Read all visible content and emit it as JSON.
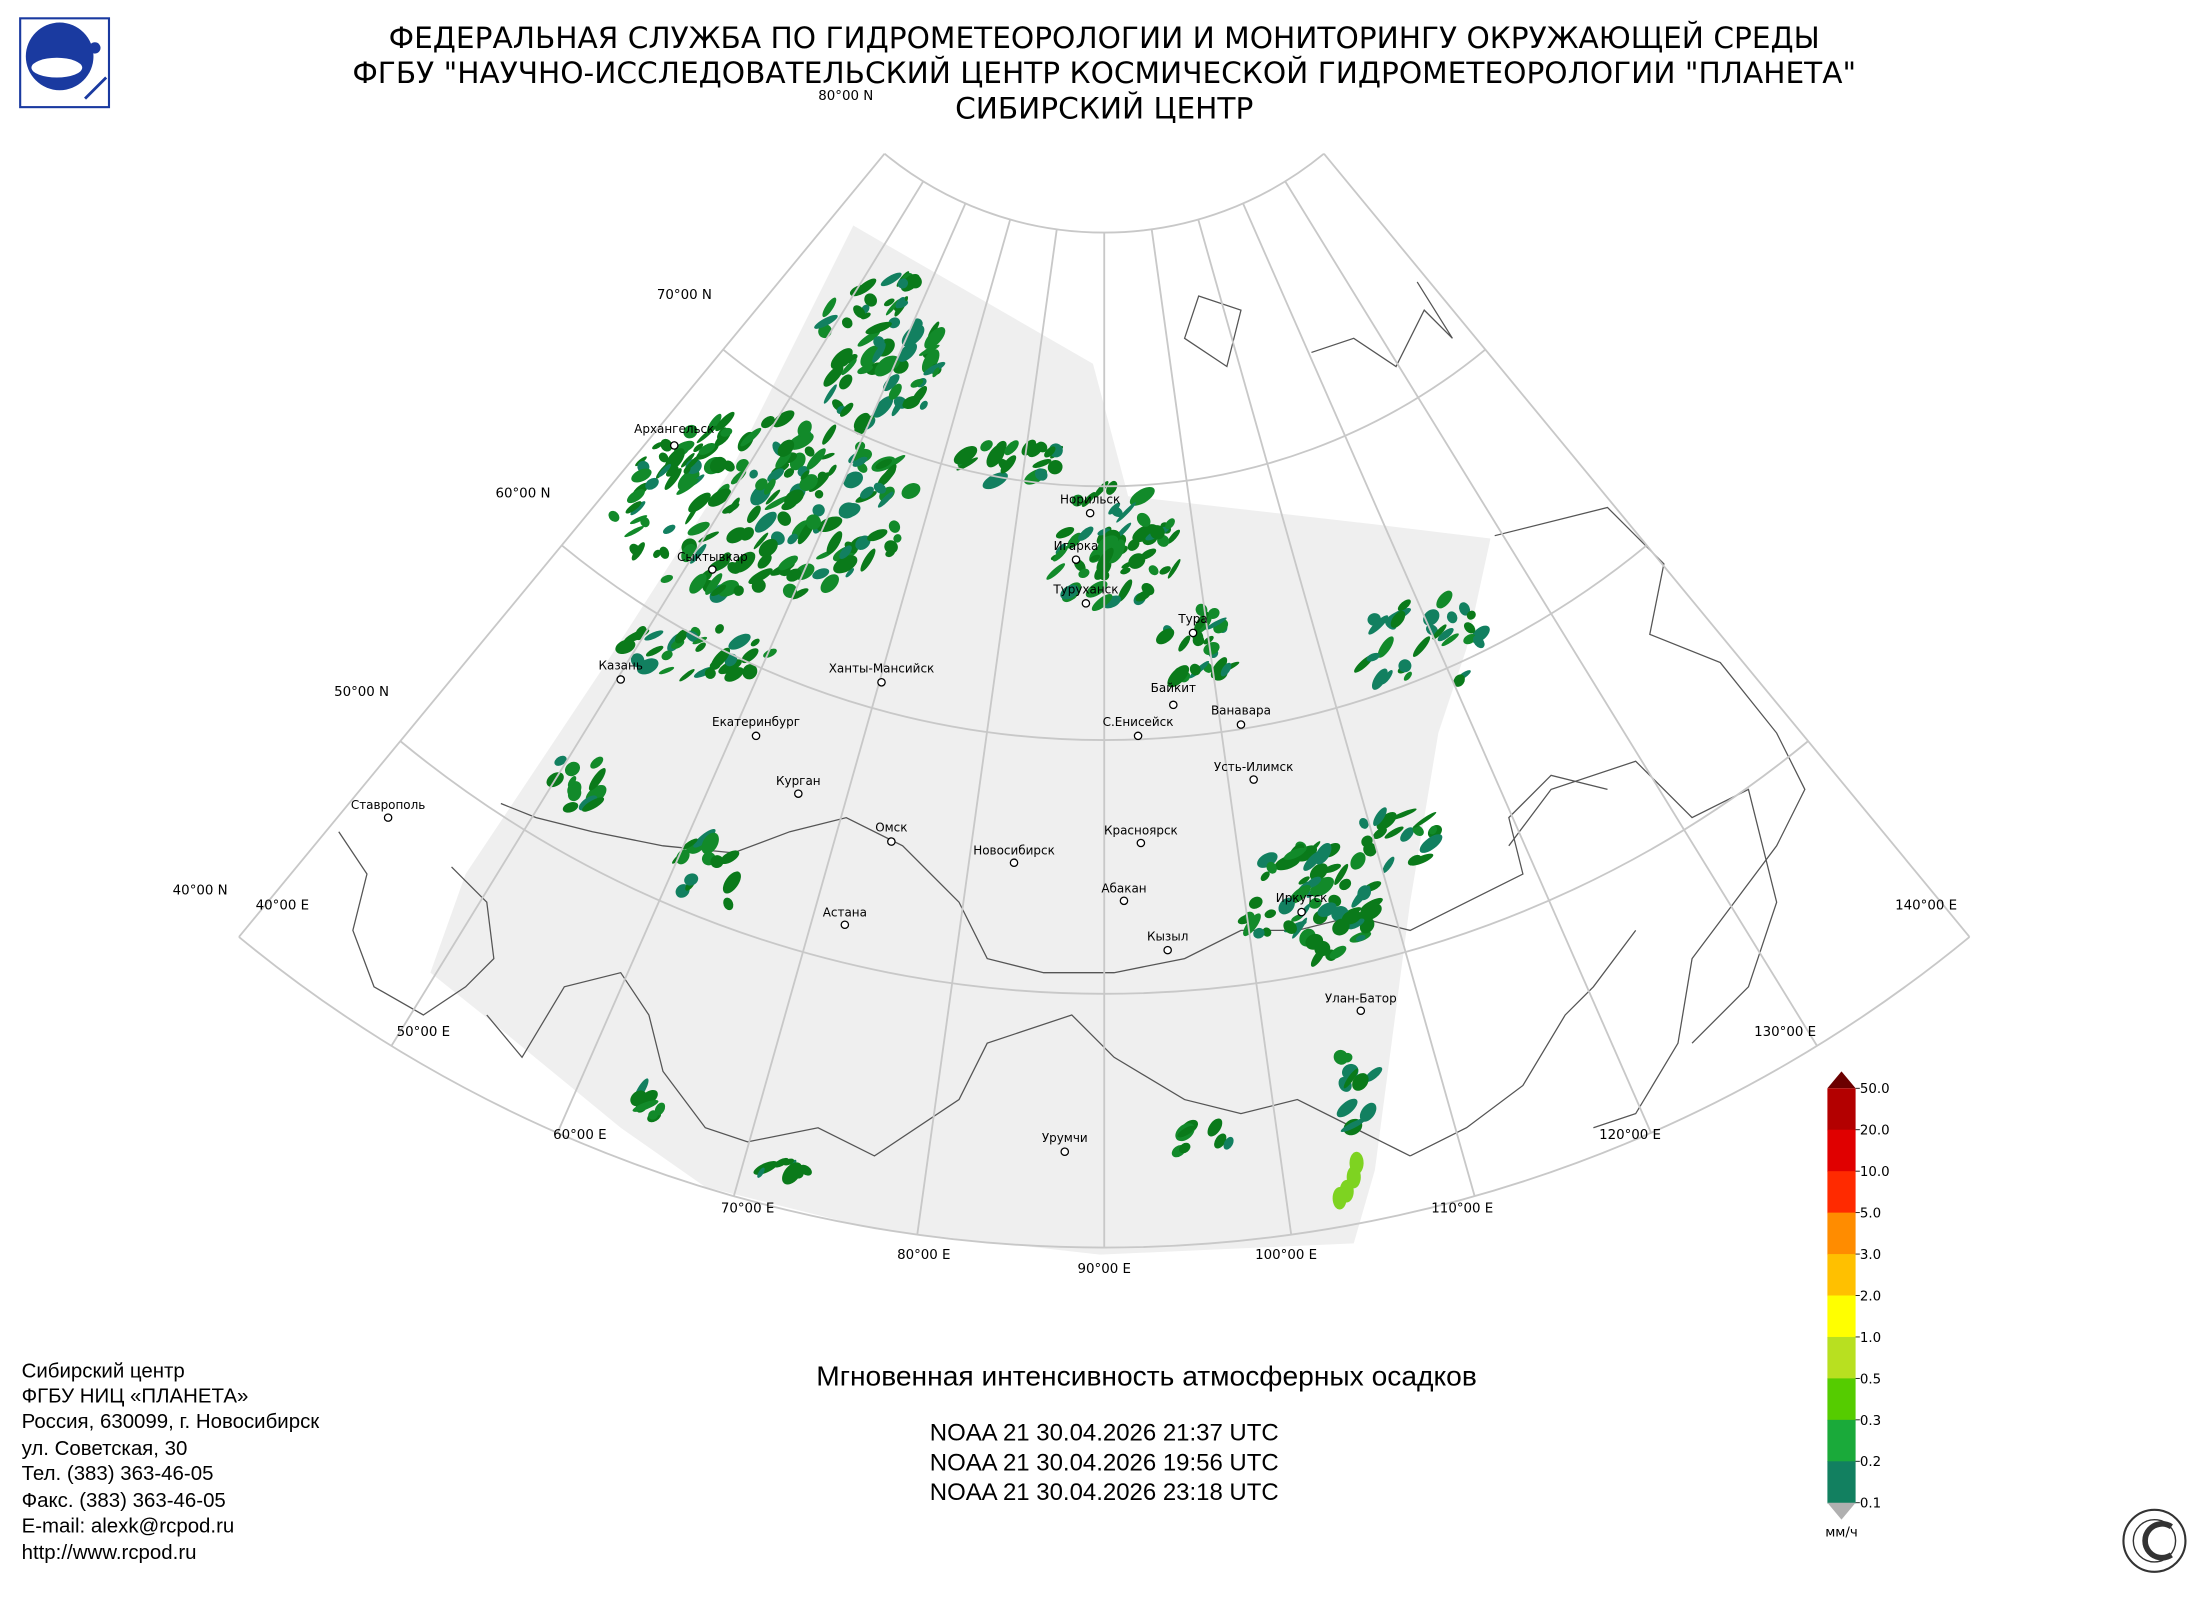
{
  "header": {
    "lines": [
      "ФЕДЕРАЛЬНАЯ СЛУЖБА ПО ГИДРОМЕТЕОРОЛОГИИ И МОНИТОРИНГУ ОКРУЖАЮЩЕЙ СРЕДЫ",
      "ФГБУ \"НАУЧНО-ИССЛЕДОВАТЕЛЬСКИЙ ЦЕНТР КОСМИЧЕСКОЙ ГИДРОМЕТЕОРОЛОГИИ \"ПЛАНЕТА\"",
      "СИБИРСКИЙ ЦЕНТР"
    ]
  },
  "map": {
    "latitude_labels": [
      "80°00 N",
      "70°00 N",
      "60°00 N",
      "50°00 N",
      "40°00 N"
    ],
    "longitude_labels": [
      "40°00 E",
      "50°00 E",
      "60°00 E",
      "70°00 E",
      "80°00 E",
      "90°00 E",
      "100°00 E",
      "110°00 E",
      "120°00 E",
      "130°00 E",
      "140°00 E"
    ],
    "cities": [
      "Архангельск",
      "Норильск",
      "Игарка",
      "Туруханск",
      "Сыктывкар",
      "Тура",
      "Казань",
      "Ханты-Мансийск",
      "Байкит",
      "Ванавара",
      "С.Енисейск",
      "Екатеринбург",
      "Усть-Илимск",
      "Курган",
      "Ставрополь",
      "Омск",
      "Красноярск",
      "Новосибирск",
      "Абакан",
      "Иркутск",
      "Астана",
      "Кызыл",
      "Улан-Батор",
      "Урумчи"
    ]
  },
  "legend": {
    "labels": [
      "50.0",
      "20.0",
      "10.0",
      "5.0",
      "3.0",
      "2.0",
      "1.0",
      "0.5",
      "0.3",
      "0.2",
      "0.1"
    ],
    "colors": [
      "#b30000",
      "#e00000",
      "#ff2a00",
      "#ff8c00",
      "#ffc000",
      "#ffff00",
      "#b8e020",
      "#55cc00",
      "#1aaa3a",
      "#128060",
      "#0a7a1a"
    ],
    "over_color": "#6b0000",
    "under_color": "#b0b0b0",
    "unit": "мм/ч"
  },
  "product": {
    "title": "Мгновенная интенсивность атмосферных осадков",
    "passes": [
      "NOAA 21 30.04.2026  21:37 UTC",
      "NOAA 21 30.04.2026  19:56 UTC",
      "NOAA 21 30.04.2026  23:18 UTC"
    ]
  },
  "footer": {
    "lines": [
      "Сибирский центр",
      "ФГБУ НИЦ «ПЛАНЕТА»",
      "Россия, 630099, г. Новосибирск",
      "ул. Советская, 30",
      "Тел. (383) 363-46-05",
      "Факс. (383) 363-46-05",
      "E-mail: alexk@rcpod.ru",
      "http://www.rcpod.ru"
    ]
  }
}
